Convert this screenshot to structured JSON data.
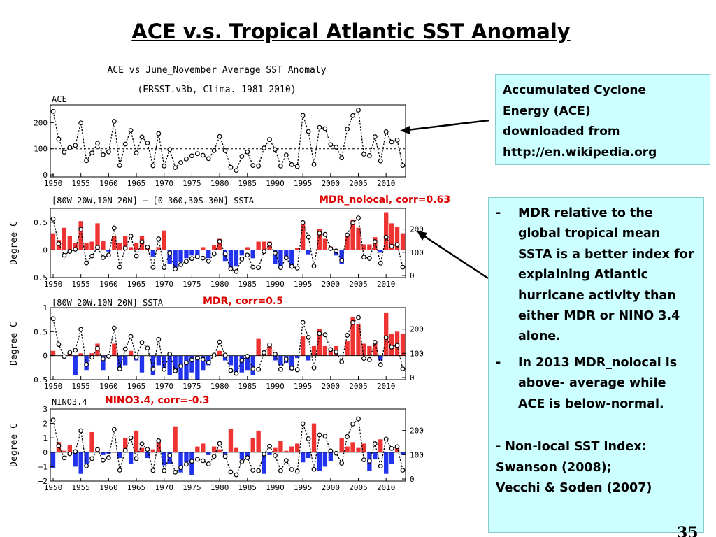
{
  "slide_title": "ACE v.s. Tropical Atlantic SST Anomaly",
  "figure": {
    "title_line1": "ACE vs June_November Average SST Anomaly",
    "title_line2": "(ERSST.v3b, Clima. 1981–2010)"
  },
  "callout_ace": {
    "lines": [
      "Accumulated Cyclone",
      "Energy (ACE)",
      "downloaded from",
      "http://en.wikipedia.org"
    ]
  },
  "callout_mdr": {
    "bullets": [
      {
        "dash": "-",
        "text": "MDR relative to the global tropical mean SSTA is a better index for explaining Atlantic hurricane activity than either MDR or NINO 3.4 alone."
      },
      {
        "dash": "-",
        "text": "In 2013 MDR_nolocal is above- average while ACE is below-normal."
      }
    ],
    "final_lines": [
      "-  Non-local SST index:",
      "Swanson (2008);",
      "Vecchi & Soden (2007)"
    ]
  },
  "page_number": "35",
  "colors": {
    "positive_bar": "#ee3333",
    "negative_bar": "#2233ee",
    "annotation_red": "#dd0000",
    "callout_bg": "#ccffff"
  },
  "chart_data": [
    {
      "type": "line",
      "panel_label": "ACE",
      "x": [
        1950,
        1951,
        1952,
        1953,
        1954,
        1955,
        1956,
        1957,
        1958,
        1959,
        1960,
        1961,
        1962,
        1963,
        1964,
        1965,
        1966,
        1967,
        1968,
        1969,
        1970,
        1971,
        1972,
        1973,
        1974,
        1975,
        1976,
        1977,
        1978,
        1979,
        1980,
        1981,
        1982,
        1983,
        1984,
        1985,
        1986,
        1987,
        1988,
        1989,
        1990,
        1991,
        1992,
        1993,
        1994,
        1995,
        1996,
        1997,
        1998,
        1999,
        2000,
        2001,
        2002,
        2003,
        2004,
        2005,
        2006,
        2007,
        2008,
        2009,
        2010,
        2011,
        2012,
        2013
      ],
      "series": [
        {
          "values": [
            243,
            137,
            87,
            104,
            113,
            199,
            54,
            84,
            121,
            77,
            88,
            205,
            36,
            118,
            170,
            84,
            145,
            122,
            35,
            158,
            34,
            97,
            28,
            47,
            61,
            73,
            81,
            75,
            62,
            93,
            147,
            93,
            29,
            17,
            71,
            88,
            36,
            34,
            103,
            135,
            97,
            34,
            76,
            39,
            32,
            228,
            166,
            40,
            182,
            177,
            116,
            106,
            65,
            175,
            227,
            248,
            79,
            74,
            146,
            53,
            165,
            126,
            133,
            36
          ]
        }
      ],
      "reference_line": 100,
      "xlim": [
        1950,
        2013
      ],
      "ylim": [
        0,
        260
      ],
      "yticks": [
        0,
        100,
        200
      ],
      "xticks": [
        1950,
        1955,
        1960,
        1965,
        1970,
        1975,
        1980,
        1985,
        1990,
        1995,
        2000,
        2005,
        2010
      ]
    },
    {
      "type": "bar",
      "panel_label": "[80W–20W,10N–20N] − [0–360,30S–30N] SSTA",
      "annotation": "MDR_nolocal, corr=0.63",
      "ylabel": "Degree C",
      "x": [
        1950,
        1951,
        1952,
        1953,
        1954,
        1955,
        1956,
        1957,
        1958,
        1959,
        1960,
        1961,
        1962,
        1963,
        1964,
        1965,
        1966,
        1967,
        1968,
        1969,
        1970,
        1971,
        1972,
        1973,
        1974,
        1975,
        1976,
        1977,
        1978,
        1979,
        1980,
        1981,
        1982,
        1983,
        1984,
        1985,
        1986,
        1987,
        1988,
        1989,
        1990,
        1991,
        1992,
        1993,
        1994,
        1995,
        1996,
        1997,
        1998,
        1999,
        2000,
        2001,
        2002,
        2003,
        2004,
        2005,
        2006,
        2007,
        2008,
        2009,
        2010,
        2011,
        2012,
        2013
      ],
      "series": [
        {
          "values": [
            0.3,
            0.18,
            0.4,
            0.25,
            0.12,
            0.52,
            0.12,
            0.15,
            0.48,
            0.16,
            -0.03,
            0.25,
            0.12,
            0.25,
            0.05,
            0.13,
            0.25,
            0.05,
            -0.12,
            0.05,
            0.35,
            -0.25,
            -0.32,
            -0.22,
            -0.15,
            -0.1,
            -0.15,
            0.05,
            -0.15,
            0.08,
            0.2,
            -0.2,
            -0.35,
            -0.3,
            -0.1,
            0.05,
            -0.15,
            0.15,
            0.15,
            0.15,
            -0.25,
            -0.3,
            -0.15,
            -0.3,
            0.03,
            0.48,
            -0.08,
            0.0,
            0.38,
            0.2,
            0.06,
            -0.1,
            -0.25,
            0.3,
            0.55,
            0.4,
            0.1,
            0.1,
            0.23,
            -0.05,
            0.68,
            0.48,
            0.42,
            0.3
          ]
        }
      ],
      "secondary_series": "ACE (right axis)",
      "ylim": [
        -0.5,
        0.75
      ],
      "yticks": [
        -0.5,
        0,
        0.5
      ],
      "y2ticks": [
        0,
        100,
        200
      ],
      "xticks": [
        1950,
        1955,
        1960,
        1965,
        1970,
        1975,
        1980,
        1985,
        1990,
        1995,
        2000,
        2005,
        2010
      ]
    },
    {
      "type": "bar",
      "panel_label": "[80W–20W,10N–20N] SSTA",
      "annotation": "MDR, corr=0.5",
      "ylabel": "Degree C",
      "x": [
        1950,
        1951,
        1952,
        1953,
        1954,
        1955,
        1956,
        1957,
        1958,
        1959,
        1960,
        1961,
        1962,
        1963,
        1964,
        1965,
        1966,
        1967,
        1968,
        1969,
        1970,
        1971,
        1972,
        1973,
        1974,
        1975,
        1976,
        1977,
        1978,
        1979,
        1980,
        1981,
        1982,
        1983,
        1984,
        1985,
        1986,
        1987,
        1988,
        1989,
        1990,
        1991,
        1992,
        1993,
        1994,
        1995,
        1996,
        1997,
        1998,
        1999,
        2000,
        2001,
        2002,
        2003,
        2004,
        2005,
        2006,
        2007,
        2008,
        2009,
        2010,
        2011,
        2012,
        2013
      ],
      "series": [
        {
          "values": [
            0.1,
            0.0,
            -0.05,
            0.05,
            -0.4,
            0.05,
            -0.3,
            0.05,
            0.25,
            -0.3,
            0.0,
            0.25,
            -0.3,
            -0.2,
            0.1,
            -0.1,
            -0.35,
            0.0,
            -0.4,
            -0.2,
            -0.25,
            -0.4,
            -0.35,
            -0.5,
            -0.5,
            -0.35,
            -0.5,
            -0.3,
            -0.2,
            0.0,
            0.1,
            -0.1,
            -0.2,
            -0.4,
            -0.35,
            -0.3,
            -0.4,
            0.35,
            0.1,
            0.2,
            -0.1,
            -0.2,
            -0.15,
            -0.3,
            -0.05,
            0.4,
            -0.1,
            0.2,
            0.55,
            0.2,
            0.15,
            0.2,
            0.0,
            0.3,
            0.8,
            0.65,
            0.25,
            0.2,
            0.3,
            -0.1,
            0.9,
            0.45,
            0.5,
            0.45
          ]
        }
      ],
      "secondary_series": "ACE (right axis)",
      "ylim": [
        -0.5,
        1.0
      ],
      "yticks": [
        -0.5,
        0,
        0.5,
        1
      ],
      "y2ticks": [
        0,
        100,
        200
      ],
      "xticks": [
        1950,
        1955,
        1960,
        1965,
        1970,
        1975,
        1980,
        1985,
        1990,
        1995,
        2000,
        2005,
        2010
      ]
    },
    {
      "type": "bar",
      "panel_label": "NINO3.4",
      "annotation": "NINO3.4, corr=-0.3",
      "ylabel": "Degree C",
      "x": [
        1950,
        1951,
        1952,
        1953,
        1954,
        1955,
        1956,
        1957,
        1958,
        1959,
        1960,
        1961,
        1962,
        1963,
        1964,
        1965,
        1966,
        1967,
        1968,
        1969,
        1970,
        1971,
        1972,
        1973,
        1974,
        1975,
        1976,
        1977,
        1978,
        1979,
        1980,
        1981,
        1982,
        1983,
        1984,
        1985,
        1986,
        1987,
        1988,
        1989,
        1990,
        1991,
        1992,
        1993,
        1994,
        1995,
        1996,
        1997,
        1998,
        1999,
        2000,
        2001,
        2002,
        2003,
        2004,
        2005,
        2006,
        2007,
        2008,
        2009,
        2010,
        2011,
        2012,
        2013
      ],
      "series": [
        {
          "values": [
            -1.1,
            0.7,
            0.1,
            0.5,
            -1.0,
            -1.5,
            -0.8,
            1.4,
            0.3,
            -0.2,
            -0.1,
            0.0,
            -0.4,
            1.0,
            -0.8,
            1.5,
            0.3,
            -0.4,
            0.2,
            0.8,
            -0.9,
            -0.8,
            1.8,
            -1.4,
            -0.7,
            -1.6,
            0.4,
            0.6,
            -0.2,
            0.4,
            0.2,
            -0.2,
            1.6,
            0.3,
            -0.5,
            -0.5,
            1.0,
            1.5,
            -1.5,
            -0.2,
            0.3,
            0.8,
            0.1,
            0.4,
            0.6,
            -0.7,
            -0.4,
            2.0,
            -1.3,
            -1.0,
            -0.6,
            -0.1,
            1.0,
            0.4,
            0.7,
            0.3,
            0.6,
            -1.3,
            -0.5,
            0.9,
            -1.5,
            -0.8,
            0.3,
            -0.2
          ]
        }
      ],
      "secondary_series": "ACE (right axis)",
      "ylim": [
        -2,
        3
      ],
      "yticks": [
        -2,
        -1,
        0,
        1,
        2,
        3
      ],
      "y2ticks": [
        0,
        100,
        200
      ],
      "xticks": [
        1950,
        1955,
        1960,
        1965,
        1970,
        1975,
        1980,
        1985,
        1990,
        1995,
        2000,
        2005,
        2010
      ]
    }
  ]
}
